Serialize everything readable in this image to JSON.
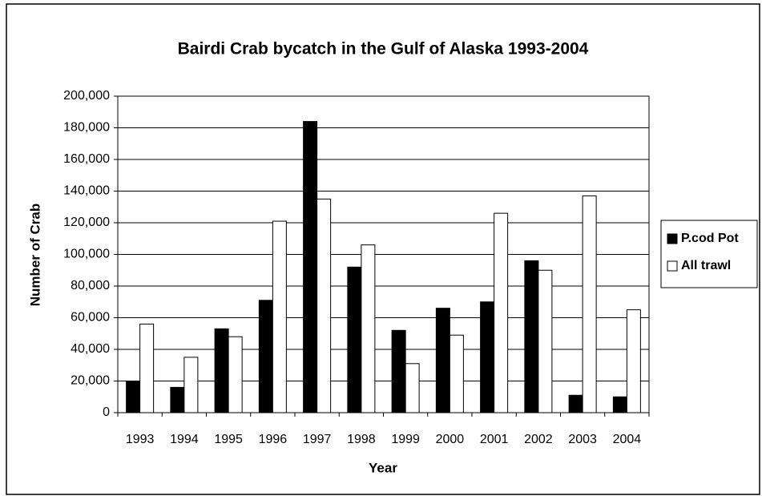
{
  "chart_data": {
    "type": "bar",
    "title": "Bairdi Crab bycatch in the Gulf of Alaska 1993-2004",
    "x_label": "Year",
    "y_label": "Number of Crab",
    "categories": [
      "1993",
      "1994",
      "1995",
      "1996",
      "1997",
      "1998",
      "1999",
      "2000",
      "2001",
      "2002",
      "2003",
      "2004"
    ],
    "series": [
      {
        "name": "P.cod Pot",
        "color": "#000000",
        "values": [
          20000,
          16000,
          53000,
          71000,
          184000,
          92000,
          52000,
          66000,
          70000,
          96000,
          11000,
          10000
        ]
      },
      {
        "name": "All trawl",
        "color": "#ffffff",
        "values": [
          56000,
          35000,
          48000,
          121000,
          135000,
          106000,
          31000,
          49000,
          126000,
          90000,
          137000,
          65000
        ]
      }
    ],
    "ylim": [
      0,
      200000
    ],
    "yticks": [
      0,
      {
        "value": 20000,
        "label": "20,000"
      },
      {
        "value": 40000,
        "label": "40,000"
      },
      {
        "value": 60000,
        "label": "60,000"
      },
      {
        "value": 80000,
        "label": "80,000"
      },
      {
        "value": 100000,
        "label": "100,000"
      },
      {
        "value": 120000,
        "label": "120,000"
      },
      {
        "value": 140000,
        "label": "140,000"
      },
      {
        "value": 160000,
        "label": "160,000"
      },
      {
        "value": 180000,
        "label": "180,000"
      },
      {
        "value": 200000,
        "label": "200,000"
      }
    ],
    "grid": true,
    "legend": "right"
  }
}
